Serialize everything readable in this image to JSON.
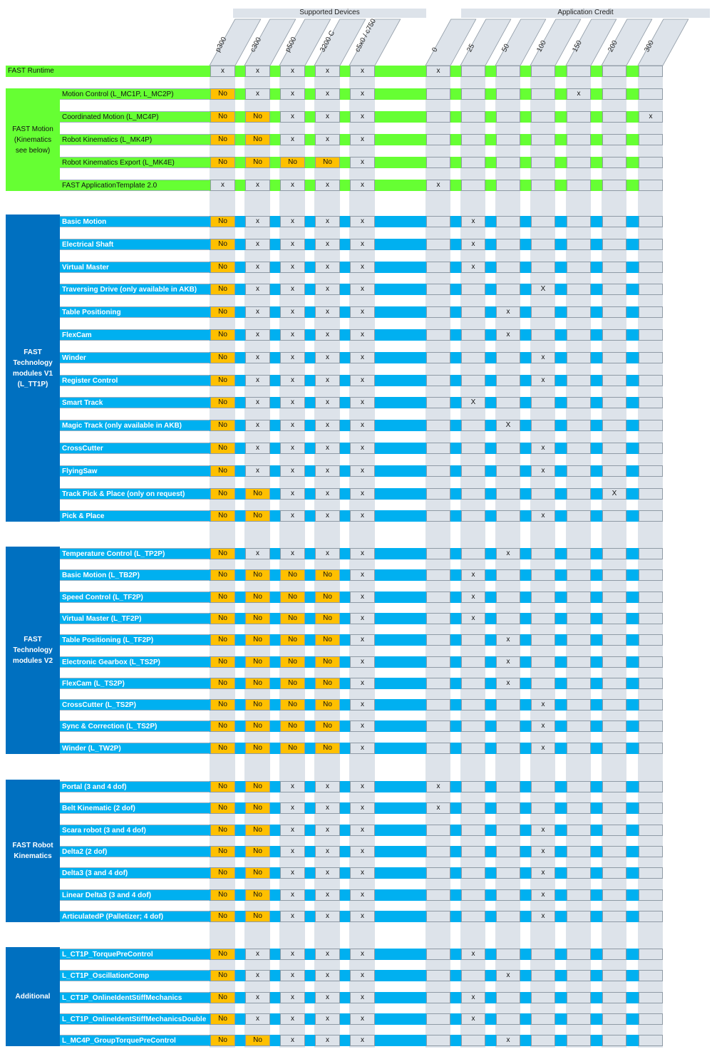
{
  "header": {
    "supported_devices": "Supported Devices",
    "application_credit": "Application Credit",
    "devices": [
      "p300",
      "c300",
      "p500",
      "3200 C",
      "c5x0 / c750"
    ],
    "credits": [
      "0",
      "25",
      "50",
      "100",
      "150",
      "200",
      "300"
    ]
  },
  "colors": {
    "green": "#66ff33",
    "blue": "#00b0f0",
    "dark_blue": "#0070c0",
    "yellow": "#ffc000",
    "gray": "#dde3ea"
  },
  "groups": [
    {
      "label": "FAST Runtime",
      "color": "green",
      "rows": [
        {
          "label": "",
          "devices": [
            "x",
            "x",
            "x",
            "x",
            "x"
          ],
          "credit": "x",
          "credit_col": 0
        }
      ]
    },
    {
      "label": "FAST Motion (Kinematics see below)",
      "color": "green",
      "rows": [
        {
          "label": "Motion Control (L_MC1P, L_MC2P)",
          "devices": [
            "No",
            "x",
            "x",
            "x",
            "x"
          ],
          "credit": "x",
          "credit_col": 4
        },
        {
          "label": "Coordinated Motion (L_MC4P)",
          "devices": [
            "No",
            "No",
            "x",
            "x",
            "x"
          ],
          "credit": "x",
          "credit_col": 6
        },
        {
          "label": "Robot Kinematics (L_MK4P)",
          "devices": [
            "No",
            "No",
            "x",
            "x",
            "x"
          ],
          "credit": "",
          "credit_col": -1
        },
        {
          "label": "Robot Kinematics Export (L_MK4E)",
          "devices": [
            "No",
            "No",
            "No",
            "No",
            "x"
          ],
          "credit": "",
          "credit_col": -1
        },
        {
          "label": "FAST ApplicationTemplate 2.0",
          "devices": [
            "x",
            "x",
            "x",
            "x",
            "x"
          ],
          "credit": "x",
          "credit_col": 0
        }
      ]
    },
    {
      "label": "FAST Technology modules V1 (L_TT1P)",
      "color": "blue",
      "rows": [
        {
          "label": "Basic Motion",
          "devices": [
            "No",
            "x",
            "x",
            "x",
            "x"
          ],
          "credit": "x",
          "credit_col": 1
        },
        {
          "label": "Electrical Shaft",
          "devices": [
            "No",
            "x",
            "x",
            "x",
            "x"
          ],
          "credit": "x",
          "credit_col": 1
        },
        {
          "label": "Virtual Master",
          "devices": [
            "No",
            "x",
            "x",
            "x",
            "x"
          ],
          "credit": "x",
          "credit_col": 1
        },
        {
          "label": "Traversing Drive (only available in AKB)",
          "devices": [
            "No",
            "x",
            "x",
            "x",
            "x"
          ],
          "credit": "X",
          "credit_col": 3
        },
        {
          "label": "Table Positioning",
          "devices": [
            "No",
            "x",
            "x",
            "x",
            "x"
          ],
          "credit": "x",
          "credit_col": 2
        },
        {
          "label": "FlexCam",
          "devices": [
            "No",
            "x",
            "x",
            "x",
            "x"
          ],
          "credit": "x",
          "credit_col": 2
        },
        {
          "label": "Winder",
          "devices": [
            "No",
            "x",
            "x",
            "x",
            "x"
          ],
          "credit": "x",
          "credit_col": 3
        },
        {
          "label": "Register Control",
          "devices": [
            "No",
            "x",
            "x",
            "x",
            "x"
          ],
          "credit": "x",
          "credit_col": 3
        },
        {
          "label": "Smart Track",
          "devices": [
            "No",
            "x",
            "x",
            "x",
            "x"
          ],
          "credit": "X",
          "credit_col": 1
        },
        {
          "label": "Magic Track (only available in AKB)",
          "devices": [
            "No",
            "x",
            "x",
            "x",
            "x"
          ],
          "credit": "X",
          "credit_col": 2
        },
        {
          "label": "CrossCutter",
          "devices": [
            "No",
            "x",
            "x",
            "x",
            "x"
          ],
          "credit": "x",
          "credit_col": 3
        },
        {
          "label": "FlyingSaw",
          "devices": [
            "No",
            "x",
            "x",
            "x",
            "x"
          ],
          "credit": "x",
          "credit_col": 3
        },
        {
          "label": "Track Pick & Place (only on request)",
          "devices": [
            "No",
            "No",
            "x",
            "x",
            "x"
          ],
          "credit": "X",
          "credit_col": 5
        },
        {
          "label": "Pick & Place",
          "devices": [
            "No",
            "No",
            "x",
            "x",
            "x"
          ],
          "credit": "x",
          "credit_col": 3
        }
      ]
    },
    {
      "label": "FAST Technology modules V2",
      "color": "blue",
      "rows": [
        {
          "label": "Temperature Control (L_TP2P)",
          "devices": [
            "No",
            "x",
            "x",
            "x",
            "x"
          ],
          "credit": "x",
          "credit_col": 2
        },
        {
          "label": "Basic Motion (L_TB2P)",
          "devices": [
            "No",
            "No",
            "No",
            "No",
            "x"
          ],
          "credit": "x",
          "credit_col": 1
        },
        {
          "label": "Speed Control (L_TF2P)",
          "devices": [
            "No",
            "No",
            "No",
            "No",
            "x"
          ],
          "credit": "x",
          "credit_col": 1
        },
        {
          "label": "Virtual Master (L_TF2P)",
          "devices": [
            "No",
            "No",
            "No",
            "No",
            "x"
          ],
          "credit": "x",
          "credit_col": 1
        },
        {
          "label": "Table Positioning (L_TF2P)",
          "devices": [
            "No",
            "No",
            "No",
            "No",
            "x"
          ],
          "credit": "x",
          "credit_col": 2
        },
        {
          "label": "Electronic Gearbox (L_TS2P)",
          "devices": [
            "No",
            "No",
            "No",
            "No",
            "x"
          ],
          "credit": "x",
          "credit_col": 2
        },
        {
          "label": "FlexCam (L_TS2P)",
          "devices": [
            "No",
            "No",
            "No",
            "No",
            "x"
          ],
          "credit": "x",
          "credit_col": 2
        },
        {
          "label": "CrossCutter (L_TS2P)",
          "devices": [
            "No",
            "No",
            "No",
            "No",
            "x"
          ],
          "credit": "x",
          "credit_col": 3
        },
        {
          "label": "Sync & Correction (L_TS2P)",
          "devices": [
            "No",
            "No",
            "No",
            "No",
            "x"
          ],
          "credit": "x",
          "credit_col": 3
        },
        {
          "label": "Winder (L_TW2P)",
          "devices": [
            "No",
            "No",
            "No",
            "No",
            "x"
          ],
          "credit": "x",
          "credit_col": 3
        }
      ]
    },
    {
      "label": "FAST Robot Kinematics",
      "color": "blue",
      "rows": [
        {
          "label": "Portal (3 and 4 dof)",
          "devices": [
            "No",
            "No",
            "x",
            "x",
            "x"
          ],
          "credit": "x",
          "credit_col": 0
        },
        {
          "label": "Belt Kinematic (2 dof)",
          "devices": [
            "No",
            "No",
            "x",
            "x",
            "x"
          ],
          "credit": "x",
          "credit_col": 0
        },
        {
          "label": "Scara robot (3 and 4 dof)",
          "devices": [
            "No",
            "No",
            "x",
            "x",
            "x"
          ],
          "credit": "x",
          "credit_col": 3
        },
        {
          "label": "Delta2 (2 dof)",
          "devices": [
            "No",
            "No",
            "x",
            "x",
            "x"
          ],
          "credit": "x",
          "credit_col": 3
        },
        {
          "label": "Delta3 (3 and 4 dof)",
          "devices": [
            "No",
            "No",
            "x",
            "x",
            "x"
          ],
          "credit": "x",
          "credit_col": 3
        },
        {
          "label": "Linear Delta3 (3 and 4 dof)",
          "devices": [
            "No",
            "No",
            "x",
            "x",
            "x"
          ],
          "credit": "x",
          "credit_col": 3
        },
        {
          "label": "ArticulatedP (Palletizer; 4 dof)",
          "devices": [
            "No",
            "No",
            "x",
            "x",
            "x"
          ],
          "credit": "x",
          "credit_col": 3
        }
      ]
    },
    {
      "label": "Additional",
      "color": "blue",
      "rows": [
        {
          "label": "L_CT1P_TorquePreControl",
          "devices": [
            "No",
            "x",
            "x",
            "x",
            "x"
          ],
          "credit": "x",
          "credit_col": 1
        },
        {
          "label": "L_CT1P_OscillationComp",
          "devices": [
            "No",
            "x",
            "x",
            "x",
            "x"
          ],
          "credit": "x",
          "credit_col": 2
        },
        {
          "label": "L_CT1P_OnlineIdentStiffMechanics",
          "devices": [
            "No",
            "x",
            "x",
            "x",
            "x"
          ],
          "credit": "x",
          "credit_col": 1
        },
        {
          "label": "L_CT1P_OnlineIdentStiffMechanicsDouble",
          "devices": [
            "No",
            "x",
            "x",
            "x",
            "x"
          ],
          "credit": "x",
          "credit_col": 1
        },
        {
          "label": "L_MC4P_GroupTorquePreControl",
          "devices": [
            "No",
            "No",
            "x",
            "x",
            "x"
          ],
          "credit": "x",
          "credit_col": 2
        }
      ]
    }
  ]
}
